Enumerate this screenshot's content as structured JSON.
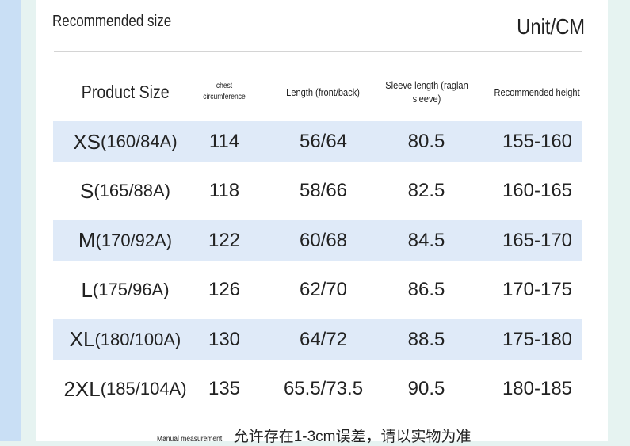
{
  "header": {
    "title": "Recommended size",
    "unit": "Unit/CM"
  },
  "table": {
    "columns": [
      "Product Size",
      "chest circumference",
      "Length (front/back)",
      "Sleeve length (raglan sleeve)",
      "Recommended height"
    ],
    "rows": [
      [
        {
          "size": "XS",
          "spec": "(160/84A)"
        },
        "114",
        "56/64",
        "80.5",
        "155-160"
      ],
      [
        {
          "size": "S",
          "spec": "(165/88A)"
        },
        "118",
        "58/66",
        "82.5",
        "160-165"
      ],
      [
        {
          "size": "M",
          "spec": "(170/92A)"
        },
        "122",
        "60/68",
        "84.5",
        "165-170"
      ],
      [
        {
          "size": "L",
          "spec": "(175/96A)"
        },
        "126",
        "62/70",
        "86.5",
        "170-175"
      ],
      [
        {
          "size": "XL",
          "spec": "(180/100A)"
        },
        "130",
        "64/72",
        "88.5",
        "175-180"
      ],
      [
        {
          "size": "2XL",
          "spec": "(185/104A)"
        },
        "135",
        "65.5/73.5",
        "90.5",
        "180-185"
      ]
    ]
  },
  "footer": {
    "label": "Manual measurement",
    "note": "允许存在1-3cm误差，请以实物为准"
  }
}
